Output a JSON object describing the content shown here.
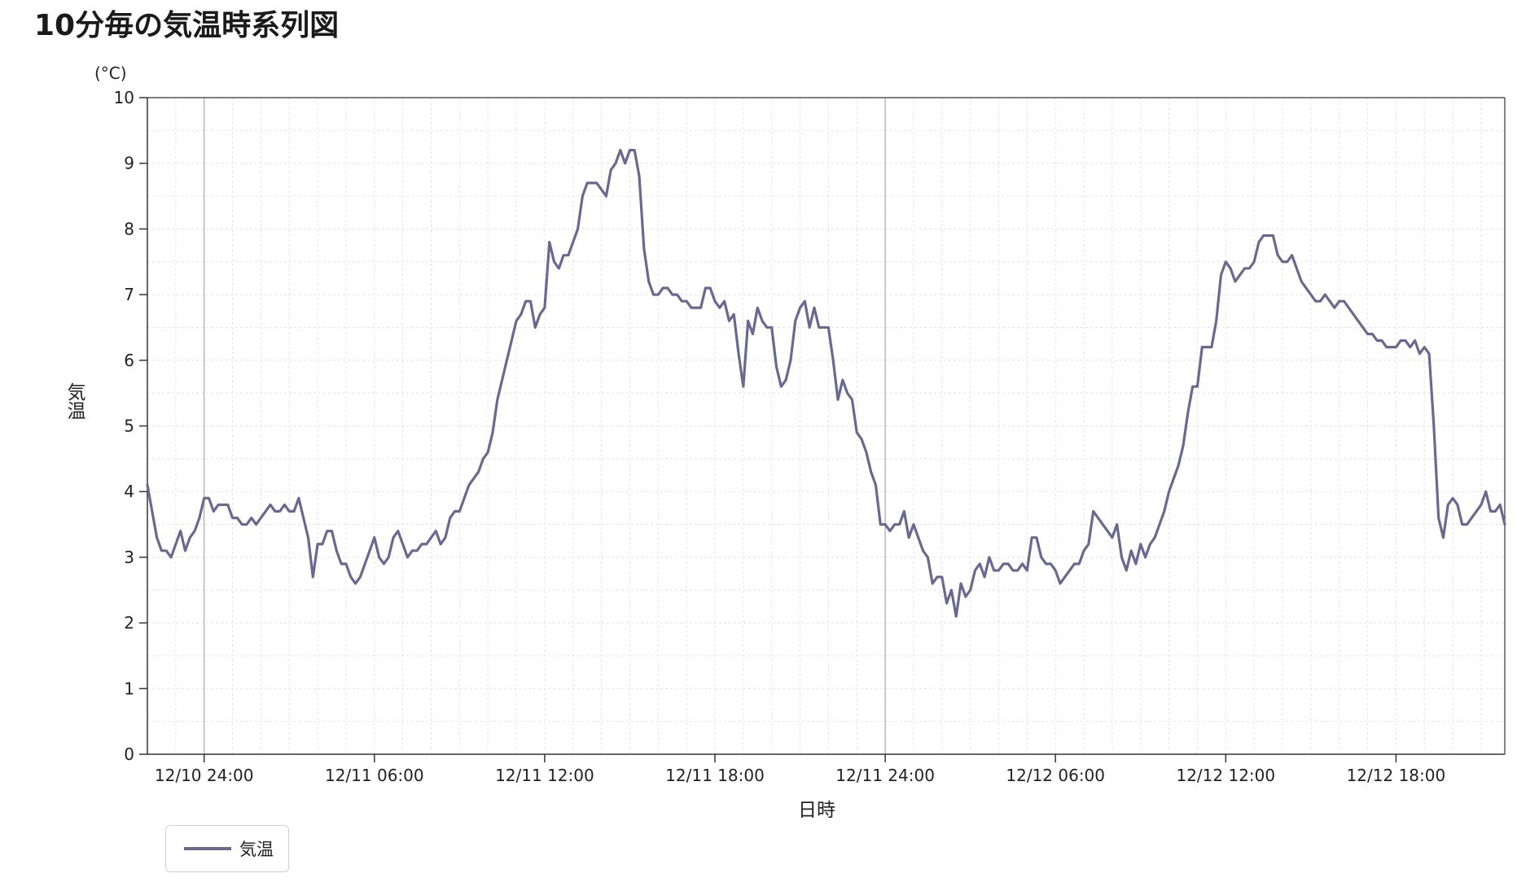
{
  "title": "10分毎の気温時系列図",
  "chart_data": {
    "type": "line",
    "unit": "(°C)",
    "xlabel": "日時",
    "ylabel": "気温",
    "ylim": [
      0,
      10
    ],
    "yticks": [
      0,
      1,
      2,
      3,
      4,
      5,
      6,
      7,
      8,
      9,
      10
    ],
    "x_range": [
      "12/10 22:00",
      "12/12 21:50"
    ],
    "x_interval_minutes": 10,
    "xtick_labels": [
      "12/10 24:00",
      "12/11 06:00",
      "12/11 12:00",
      "12/11 18:00",
      "12/11 24:00",
      "12/12 06:00",
      "12/12 12:00",
      "12/12 18:00"
    ],
    "xtick_hours_from_start": [
      2,
      8,
      14,
      20,
      26,
      32,
      38,
      44
    ],
    "major_gridlines_at": [
      "12/10 24:00",
      "12/11 24:00"
    ],
    "grid": true,
    "line_color": "#6b6890",
    "legend_position": "bottom-left",
    "series": [
      {
        "name": "気温",
        "values": [
          4.1,
          3.7,
          3.3,
          3.1,
          3.1,
          3.0,
          3.2,
          3.4,
          3.1,
          3.3,
          3.4,
          3.6,
          3.9,
          3.9,
          3.7,
          3.8,
          3.8,
          3.8,
          3.6,
          3.6,
          3.5,
          3.5,
          3.6,
          3.5,
          3.6,
          3.7,
          3.8,
          3.7,
          3.7,
          3.8,
          3.7,
          3.7,
          3.9,
          3.6,
          3.3,
          2.7,
          3.2,
          3.2,
          3.4,
          3.4,
          3.1,
          2.9,
          2.9,
          2.7,
          2.6,
          2.7,
          2.9,
          3.1,
          3.3,
          3.0,
          2.9,
          3.0,
          3.3,
          3.4,
          3.2,
          3.0,
          3.1,
          3.1,
          3.2,
          3.2,
          3.3,
          3.4,
          3.2,
          3.3,
          3.6,
          3.7,
          3.7,
          3.9,
          4.1,
          4.2,
          4.3,
          4.5,
          4.6,
          4.9,
          5.4,
          5.7,
          6.0,
          6.3,
          6.6,
          6.7,
          6.9,
          6.9,
          6.5,
          6.7,
          6.8,
          7.8,
          7.5,
          7.4,
          7.6,
          7.6,
          7.8,
          8.0,
          8.5,
          8.7,
          8.7,
          8.7,
          8.6,
          8.5,
          8.9,
          9.0,
          9.2,
          9.0,
          9.2,
          9.2,
          8.8,
          7.7,
          7.2,
          7.0,
          7.0,
          7.1,
          7.1,
          7.0,
          7.0,
          6.9,
          6.9,
          6.8,
          6.8,
          6.8,
          7.1,
          7.1,
          6.9,
          6.8,
          6.9,
          6.6,
          6.7,
          6.1,
          5.6,
          6.6,
          6.4,
          6.8,
          6.6,
          6.5,
          6.5,
          5.9,
          5.6,
          5.7,
          6.0,
          6.6,
          6.8,
          6.9,
          6.5,
          6.8,
          6.5,
          6.5,
          6.5,
          6.0,
          5.4,
          5.7,
          5.5,
          5.4,
          4.9,
          4.8,
          4.6,
          4.3,
          4.1,
          3.5,
          3.5,
          3.4,
          3.5,
          3.5,
          3.7,
          3.3,
          3.5,
          3.3,
          3.1,
          3.0,
          2.6,
          2.7,
          2.7,
          2.3,
          2.5,
          2.1,
          2.6,
          2.4,
          2.5,
          2.8,
          2.9,
          2.7,
          3.0,
          2.8,
          2.8,
          2.9,
          2.9,
          2.8,
          2.8,
          2.9,
          2.8,
          3.3,
          3.3,
          3.0,
          2.9,
          2.9,
          2.8,
          2.6,
          2.7,
          2.8,
          2.9,
          2.9,
          3.1,
          3.2,
          3.7,
          3.6,
          3.5,
          3.4,
          3.3,
          3.5,
          3.0,
          2.8,
          3.1,
          2.9,
          3.2,
          3.0,
          3.2,
          3.3,
          3.5,
          3.7,
          4.0,
          4.2,
          4.4,
          4.7,
          5.2,
          5.6,
          5.6,
          6.2,
          6.2,
          6.2,
          6.6,
          7.3,
          7.5,
          7.4,
          7.2,
          7.3,
          7.4,
          7.4,
          7.5,
          7.8,
          7.9,
          7.9,
          7.9,
          7.6,
          7.5,
          7.5,
          7.6,
          7.4,
          7.2,
          7.1,
          7.0,
          6.9,
          6.9,
          7.0,
          6.9,
          6.8,
          6.9,
          6.9,
          6.8,
          6.7,
          6.6,
          6.5,
          6.4,
          6.4,
          6.3,
          6.3,
          6.2,
          6.2,
          6.2,
          6.3,
          6.3,
          6.2,
          6.3,
          6.1,
          6.2,
          6.1,
          5.0,
          3.6,
          3.3,
          3.8,
          3.9,
          3.8,
          3.5,
          3.5,
          3.6,
          3.7,
          3.8,
          4.0,
          3.7,
          3.7,
          3.8,
          3.5
        ]
      }
    ]
  }
}
